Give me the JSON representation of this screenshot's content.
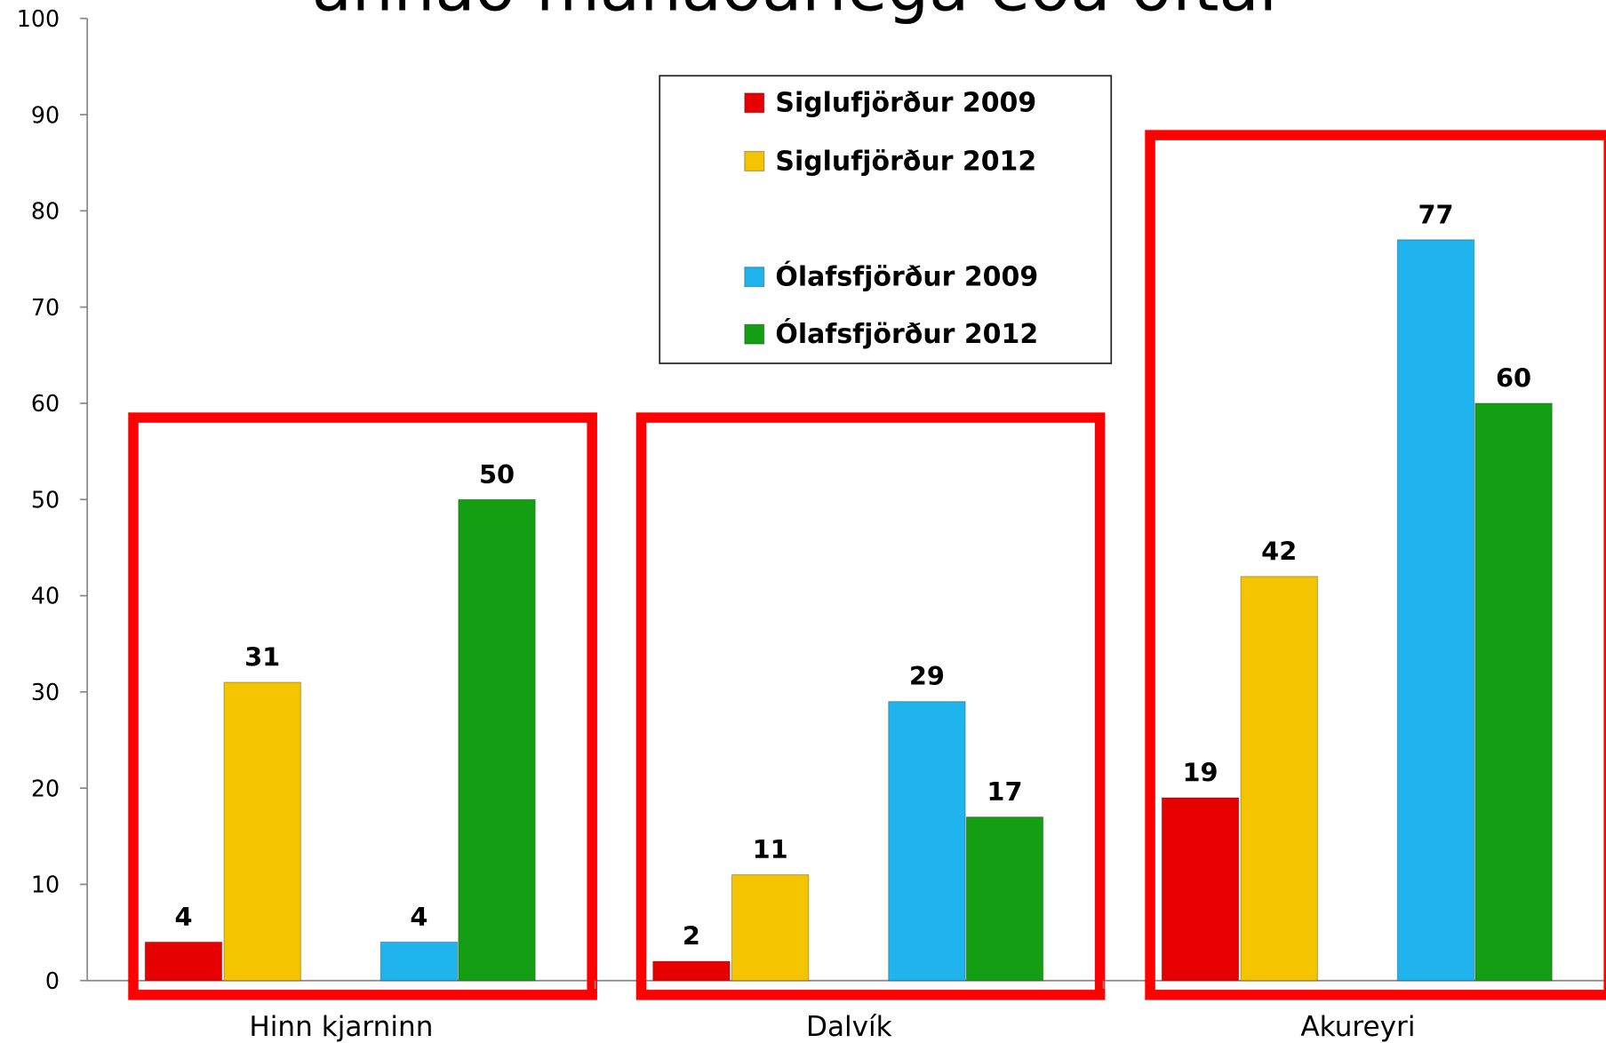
{
  "chart_data": {
    "type": "bar",
    "title": "annað mánaðarlega eða oftar",
    "categories": [
      "Hinn kjarninn",
      "Dalvík",
      "Akureyri"
    ],
    "series": [
      {
        "name": "Siglufjörður 2009",
        "color": "#e60000",
        "values": [
          4,
          2,
          19
        ]
      },
      {
        "name": "Siglufjörður 2012",
        "color": "#f5c400",
        "values": [
          31,
          11,
          42
        ]
      },
      {
        "name": "Ólafsfjörður 2009",
        "color": "#1fb4ee",
        "values": [
          4,
          29,
          77
        ]
      },
      {
        "name": "Ólafsfjörður 2012",
        "color": "#149e14",
        "values": [
          50,
          17,
          60
        ]
      }
    ],
    "ylim": [
      0,
      100
    ],
    "yticks": [
      0,
      10,
      20,
      30,
      40,
      50,
      60,
      70,
      80,
      90,
      100
    ],
    "grid": false,
    "legend": "top"
  }
}
